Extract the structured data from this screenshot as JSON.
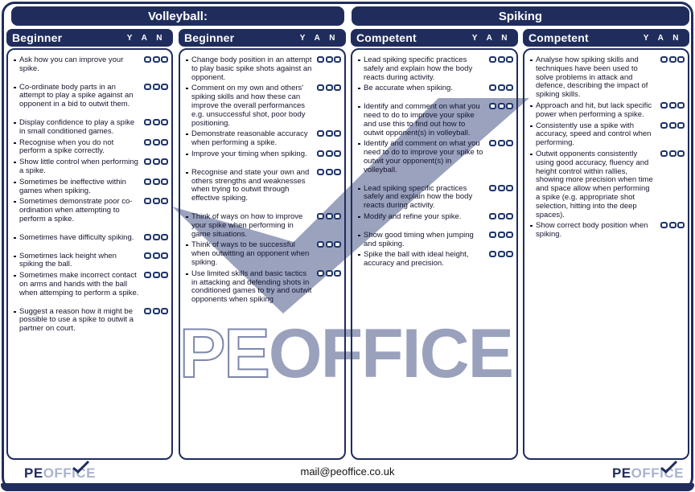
{
  "header": {
    "sport_label": "Volleyball:",
    "skill_label": "Spiking"
  },
  "watermark": {
    "pe": "PE",
    "office": "OFFICE",
    "check_color": "#9aa2bd",
    "text_color": "#99a1bc"
  },
  "footer": {
    "email": "mail@peoffice.co.uk",
    "logo_pe": "PE",
    "logo_office": "OFFICE"
  },
  "colors": {
    "navy": "#202d5c",
    "logo_light": "#a9b3ce",
    "body_text": "#15152e"
  },
  "columns": [
    {
      "title": "Beginner",
      "yan": "Y A N",
      "items": [
        {
          "text": "Ask how you can improve your spike.",
          "gap": false
        },
        {
          "text": "Co-ordinate body parts in an attempt to play a spike against an opponent in a bid to outwit them.",
          "gap": true
        },
        {
          "text": "Display confidence to play a spike in small conditioned games.",
          "gap": true
        },
        {
          "text": "Recognise when you do not perform a spike correctly.",
          "gap": false
        },
        {
          "text": "Show little control when performing a spike.",
          "gap": false
        },
        {
          "text": "Sometimes be ineffective within games when spiking.",
          "gap": false
        },
        {
          "text": "Sometimes demonstrate poor co-ordination when attempting to perform a spike.",
          "gap": false
        },
        {
          "text": "Sometimes have difficulty spiking.",
          "gap": true
        },
        {
          "text": "Sometimes lack height when spiking the ball.",
          "gap": true
        },
        {
          "text": "Sometimes make incorrect contact on arms and hands with the ball when attemping to perform a spike.",
          "gap": false
        },
        {
          "text": "Suggest a reason how it might be possible to use a spike to outwit a partner on court.",
          "gap": true
        }
      ]
    },
    {
      "title": "Beginner",
      "yan": "Y A N",
      "items": [
        {
          "text": "Change body position in an attempt to play basic spike shots against an opponent.",
          "gap": false
        },
        {
          "text": "Comment on my own and others' spiking skills and how these can improve the overall performances e.g. unsuccessful shot, poor body positioning.",
          "gap": false
        },
        {
          "text": "Demonstrate reasonable accuracy when performing a spike.",
          "gap": false
        },
        {
          "text": "Improve your timing when spiking.",
          "gap": false
        },
        {
          "text": "Recognise and state your own and others strengths and weaknesses when trying to outwit through effective spiking.",
          "gap": true
        },
        {
          "text": "Think of ways on how to improve your spike when performing in game situations.",
          "gap": true
        },
        {
          "text": "Think of ways to be successful when outwitting an opponent when spiking.",
          "gap": false
        },
        {
          "text": "Use limited skills and basic tactics in attacking and defending shots in conditioned games to try and outwit opponents when spiking",
          "gap": false
        }
      ]
    },
    {
      "title": "Competent",
      "yan": "Y A N",
      "items": [
        {
          "text": "Lead spiking specific practices safely and explain how the body reacts during activity.",
          "gap": false
        },
        {
          "text": "Be accurate when spiking.",
          "gap": false
        },
        {
          "text": "Identify and comment on what you need to do to improve your spike and use this to find out how to outwit opponent(s) in volleyball.",
          "gap": true
        },
        {
          "text": "Identify and comment on what you need to do to improve your spike to outwit your opponent(s) in volleyball.",
          "gap": false
        },
        {
          "text": "Lead spiking specific practices safely and explain how the body reacts during activity.",
          "gap": true
        },
        {
          "text": "Modify and refine your spike.",
          "gap": false
        },
        {
          "text": "Show good timing when jumping and spiking.",
          "gap": true
        },
        {
          "text": "Spike the ball with ideal height, accuracy and precision.",
          "gap": false
        }
      ]
    },
    {
      "title": "Competent",
      "yan": "Y A N",
      "items": [
        {
          "text": "Analyse how spiking skills and techniques have been used to solve problems in attack and defence, describing the impact of spiking skills.",
          "gap": false
        },
        {
          "text": "Approach and hit, but lack specific power when performing a spike.",
          "gap": false
        },
        {
          "text": "Consistently use a spike with accuracy, speed and control when performing.",
          "gap": false
        },
        {
          "text": "Outwit opponents consistently using good accuracy, fluency and height control within rallies, showing more precision when time and space allow when performing a spike (e.g. appropriate shot selection, hitting into the deep spaces).",
          "gap": false
        },
        {
          "text": "Show correct body position when spiking.",
          "gap": false
        }
      ]
    }
  ]
}
